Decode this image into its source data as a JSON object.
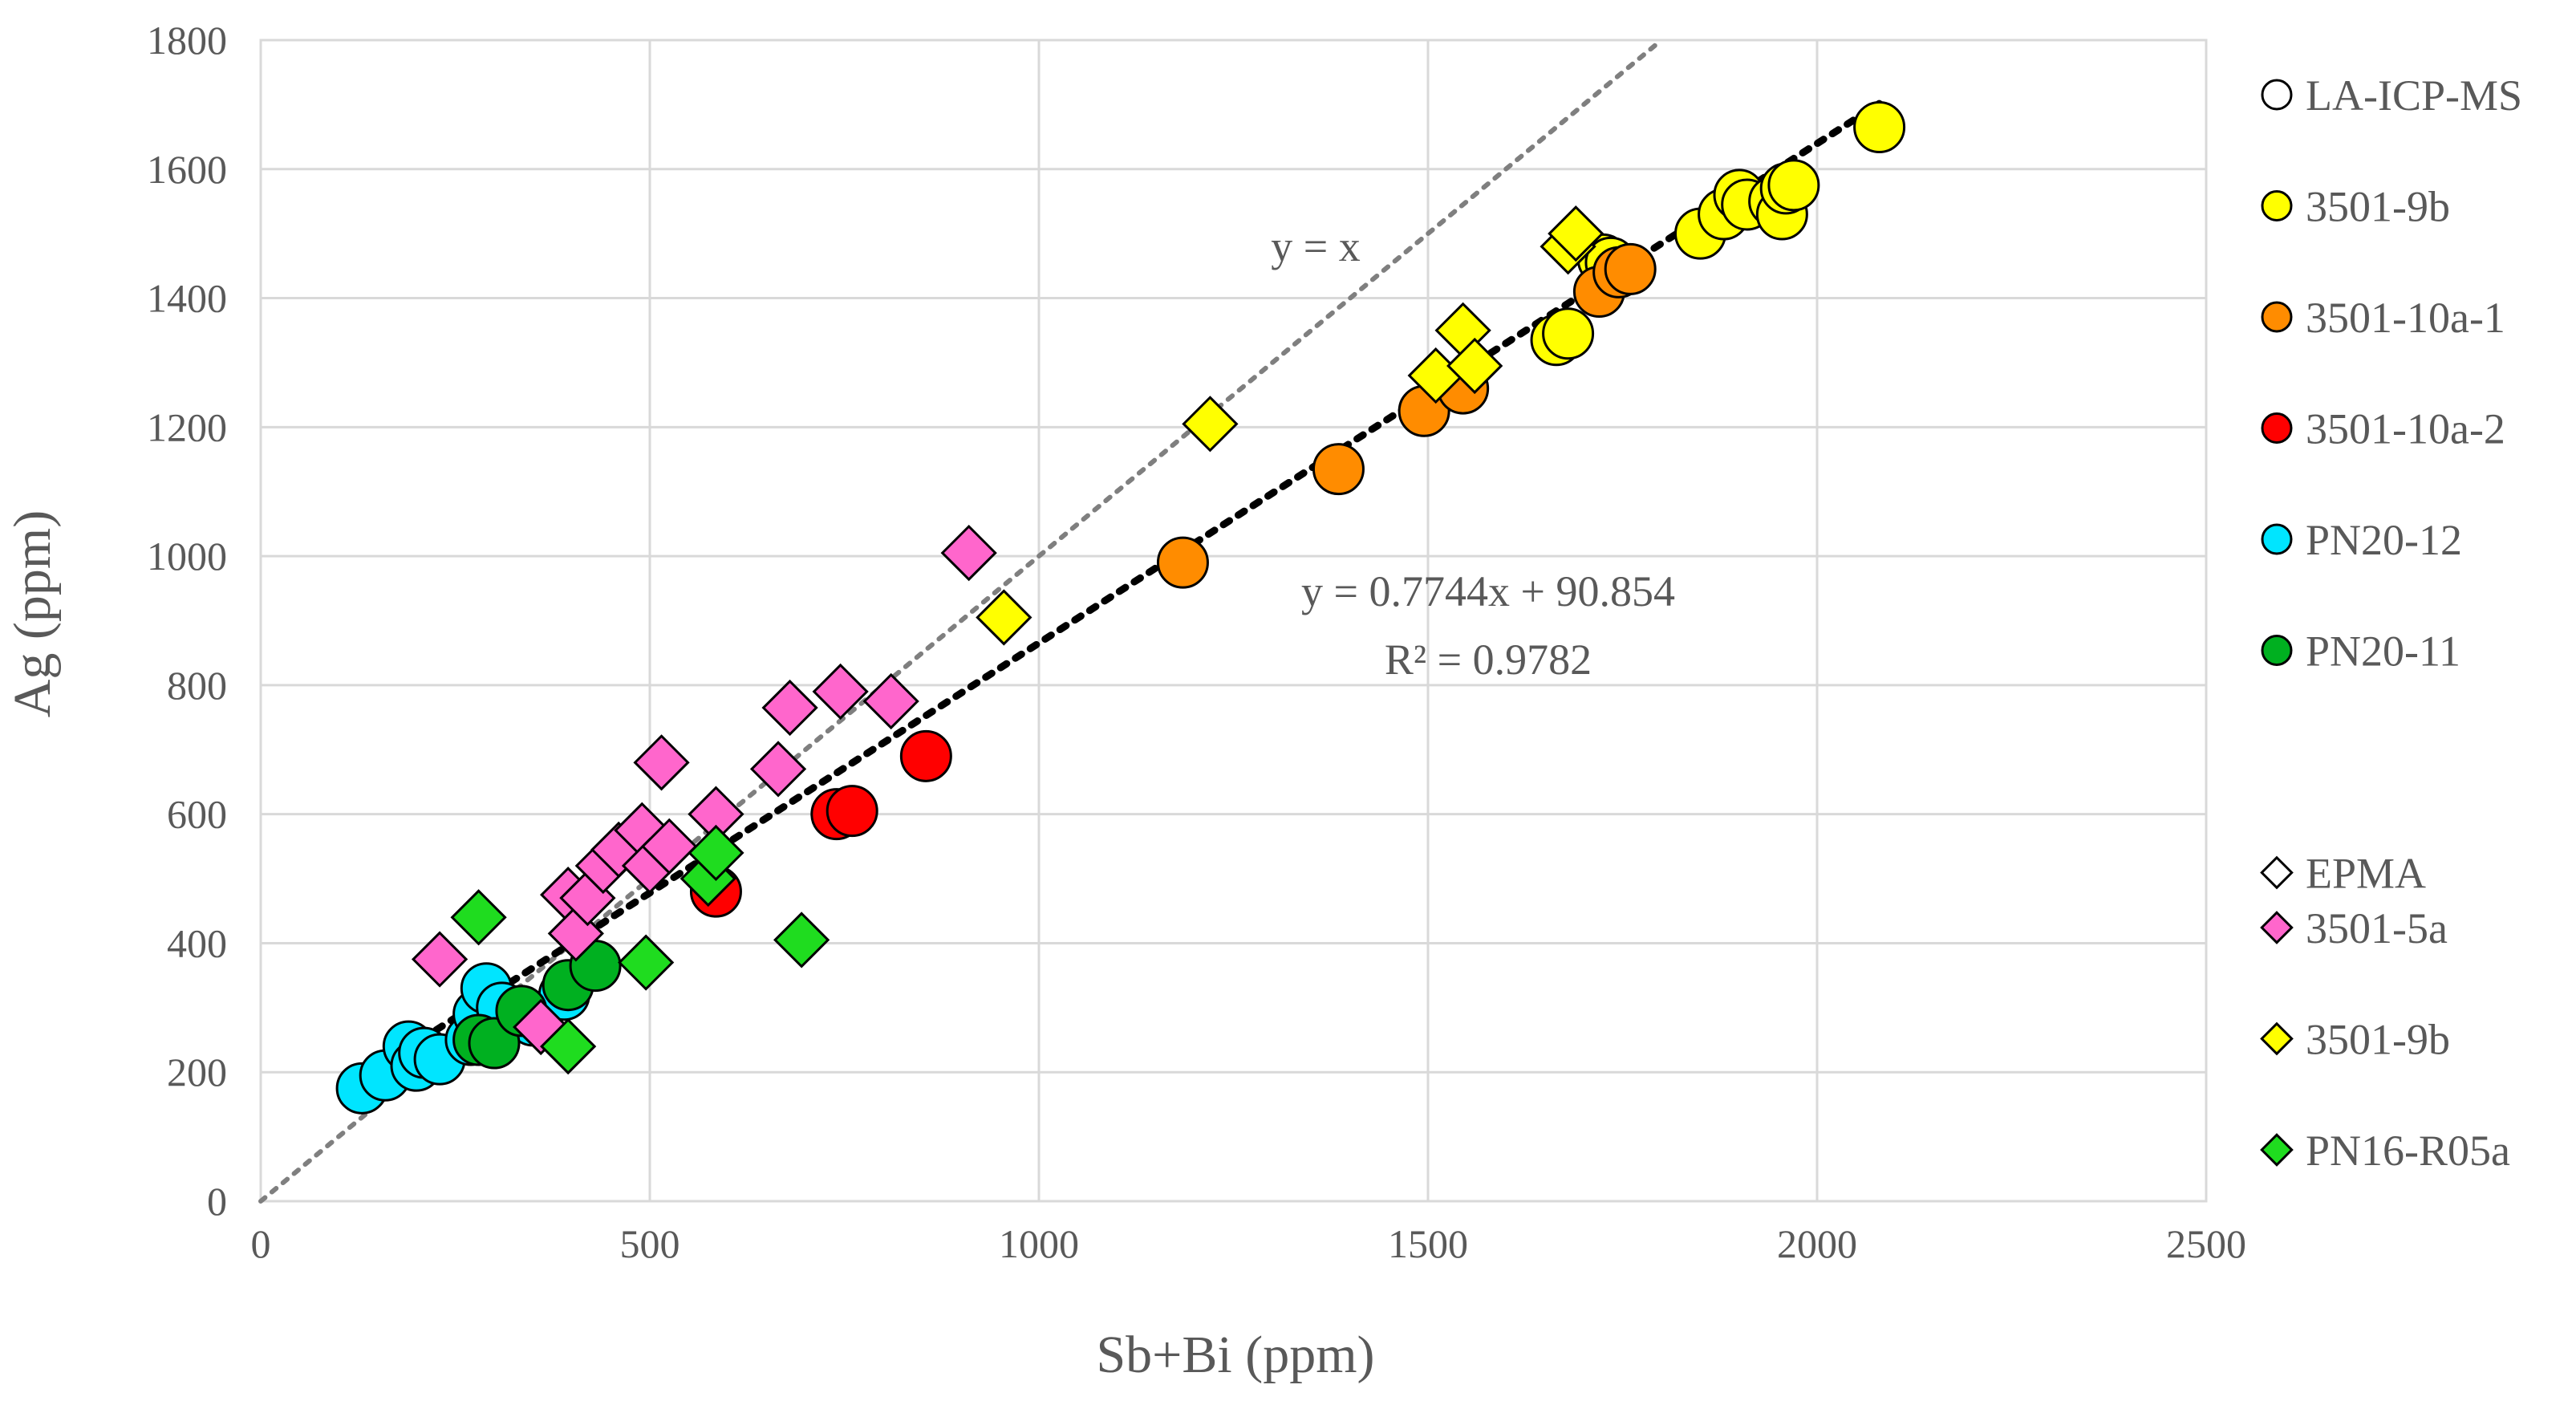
{
  "chart_data": {
    "type": "scatter",
    "title": "",
    "xlabel": "Sb+Bi (ppm)",
    "ylabel": "Ag (ppm)",
    "xlim": [
      0,
      2500
    ],
    "ylim": [
      0,
      1800
    ],
    "xticks": [
      0,
      500,
      1000,
      1500,
      2000,
      2500
    ],
    "yticks": [
      0,
      200,
      400,
      600,
      800,
      1000,
      1200,
      1400,
      1600,
      1800
    ],
    "grid": true,
    "legend_position": "right",
    "legend_groups": [
      {
        "label": "LA-ICP-MS",
        "marker": "circle",
        "color": "#ffffff"
      },
      {
        "label": "EPMA",
        "marker": "diamond",
        "color": "#ffffff"
      }
    ],
    "series": [
      {
        "name": "3501-9b",
        "marker": "circle",
        "color": "#ffff00",
        "points": [
          [
            1665,
            1335
          ],
          [
            1680,
            1345
          ],
          [
            1725,
            1460
          ],
          [
            1735,
            1455
          ],
          [
            1850,
            1500
          ],
          [
            1880,
            1530
          ],
          [
            1900,
            1560
          ],
          [
            1910,
            1545
          ],
          [
            1945,
            1550
          ],
          [
            1955,
            1530
          ],
          [
            1960,
            1570
          ],
          [
            1970,
            1575
          ],
          [
            2080,
            1665
          ]
        ]
      },
      {
        "name": "3501-10a-1",
        "marker": "circle",
        "color": "#ff8c00",
        "points": [
          [
            1185,
            990
          ],
          [
            1385,
            1135
          ],
          [
            1495,
            1225
          ],
          [
            1545,
            1260
          ],
          [
            1720,
            1410
          ],
          [
            1745,
            1440
          ],
          [
            1760,
            1445
          ]
        ]
      },
      {
        "name": "3501-10a-2",
        "marker": "circle",
        "color": "#ff0000",
        "points": [
          [
            585,
            480
          ],
          [
            740,
            600
          ],
          [
            760,
            605
          ],
          [
            855,
            690
          ]
        ]
      },
      {
        "name": "PN20-12",
        "marker": "circle",
        "color": "#00e5ff",
        "points": [
          [
            130,
            175
          ],
          [
            160,
            195
          ],
          [
            190,
            240
          ],
          [
            200,
            210
          ],
          [
            210,
            230
          ],
          [
            230,
            220
          ],
          [
            270,
            250
          ],
          [
            280,
            290
          ],
          [
            290,
            330
          ],
          [
            310,
            300
          ],
          [
            350,
            280
          ],
          [
            390,
            320
          ]
        ]
      },
      {
        "name": "PN20-11",
        "marker": "circle",
        "color": "#00b020",
        "points": [
          [
            280,
            250
          ],
          [
            300,
            245
          ],
          [
            335,
            295
          ],
          [
            395,
            335
          ],
          [
            430,
            365
          ]
        ]
      },
      {
        "name": "3501-5a",
        "marker": "diamond",
        "color": "#ff66cc",
        "points": [
          [
            230,
            375
          ],
          [
            360,
            270
          ],
          [
            395,
            475
          ],
          [
            405,
            415
          ],
          [
            420,
            470
          ],
          [
            440,
            520
          ],
          [
            460,
            545
          ],
          [
            490,
            575
          ],
          [
            500,
            520
          ],
          [
            515,
            680
          ],
          [
            525,
            550
          ],
          [
            585,
            600
          ],
          [
            665,
            670
          ],
          [
            680,
            765
          ],
          [
            745,
            790
          ],
          [
            810,
            775
          ],
          [
            910,
            1005
          ]
        ]
      },
      {
        "name": "3501-9b",
        "marker": "diamond",
        "color": "#ffff00",
        "points": [
          [
            955,
            905
          ],
          [
            1220,
            1205
          ],
          [
            1510,
            1280
          ],
          [
            1545,
            1350
          ],
          [
            1560,
            1295
          ],
          [
            1680,
            1480
          ],
          [
            1690,
            1500
          ]
        ]
      },
      {
        "name": "PN16-R05a",
        "marker": "diamond",
        "color": "#1fdc1f",
        "points": [
          [
            280,
            440
          ],
          [
            395,
            240
          ],
          [
            495,
            370
          ],
          [
            575,
            500
          ],
          [
            585,
            540
          ],
          [
            695,
            405
          ]
        ]
      }
    ],
    "lines": [
      {
        "name": "y = x",
        "style": "dotted",
        "color": "#7f7f7f",
        "slope": 1,
        "intercept": 0,
        "x_range": [
          0,
          1800
        ]
      },
      {
        "name": "trendline",
        "style": "dotted",
        "color": "#000000",
        "slope": 0.7744,
        "intercept": 90.854,
        "x_range": [
          130,
          2080
        ]
      }
    ],
    "annotations": {
      "identity": "y = x",
      "equation": "y = 0.7744x + 90.854",
      "r2": "R² = 0.9782"
    }
  }
}
